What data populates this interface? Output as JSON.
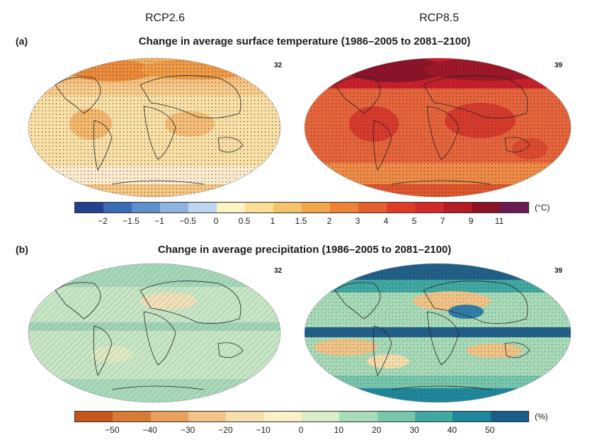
{
  "scenarios": {
    "left": "RCP2.6",
    "right": "RCP8.5"
  },
  "panel_a": {
    "label": "(a)",
    "title": "Change in average surface temperature (1986–2005 to 2081–2100)",
    "model_count_left": "32",
    "model_count_right": "39",
    "colorbar": {
      "colors": [
        "#23408f",
        "#3a6cb4",
        "#5f8fcb",
        "#8fb4de",
        "#bcd6ee",
        "#fdf3c5",
        "#fbdf96",
        "#f6c26a",
        "#f2a54a",
        "#ec8236",
        "#e5602c",
        "#df3d28",
        "#d22a2a",
        "#b51c24",
        "#8c1226",
        "#6a1a55"
      ],
      "ticks": [
        "−2",
        "−1.5",
        "−1",
        "−0.5",
        "0",
        "0.5",
        "1",
        "1.5",
        "2",
        "3",
        "4",
        "5",
        "7",
        "9",
        "11"
      ],
      "unit": "(°C)"
    }
  },
  "panel_b": {
    "label": "(b)",
    "title": "Change in average precipitation (1986–2005 to 2081–2100)",
    "model_count_left": "32",
    "model_count_right": "39",
    "colorbar": {
      "colors": [
        "#c8561c",
        "#d87b35",
        "#e8a05a",
        "#f2c487",
        "#f8dfae",
        "#fbf0c8",
        "#d7eec7",
        "#a8dcb8",
        "#77c7ad",
        "#3fa9a2",
        "#1f879c",
        "#175f8a"
      ],
      "ticks": [
        "−50",
        "−40",
        "−30",
        "−20",
        "−10",
        "0",
        "10",
        "20",
        "30",
        "40",
        "50"
      ],
      "unit": "(%)"
    }
  }
}
